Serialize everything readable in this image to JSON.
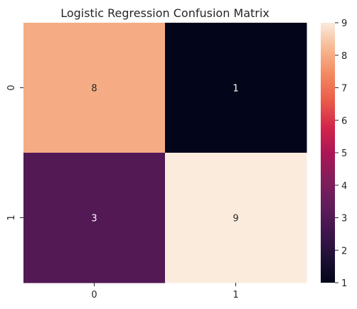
{
  "chart_data": {
    "type": "heatmap",
    "title": "Logistic Regression Confusion Matrix",
    "xlabel": "",
    "ylabel": "",
    "x_categories": [
      "0",
      "1"
    ],
    "y_categories": [
      "0",
      "1"
    ],
    "values": [
      [
        8,
        1
      ],
      [
        3,
        9
      ]
    ],
    "colorbar": {
      "min": 1,
      "max": 9,
      "ticks": [
        1,
        2,
        3,
        4,
        5,
        6,
        7,
        8,
        9
      ],
      "colormap": "rocket"
    },
    "annotations": true,
    "grid": false
  }
}
